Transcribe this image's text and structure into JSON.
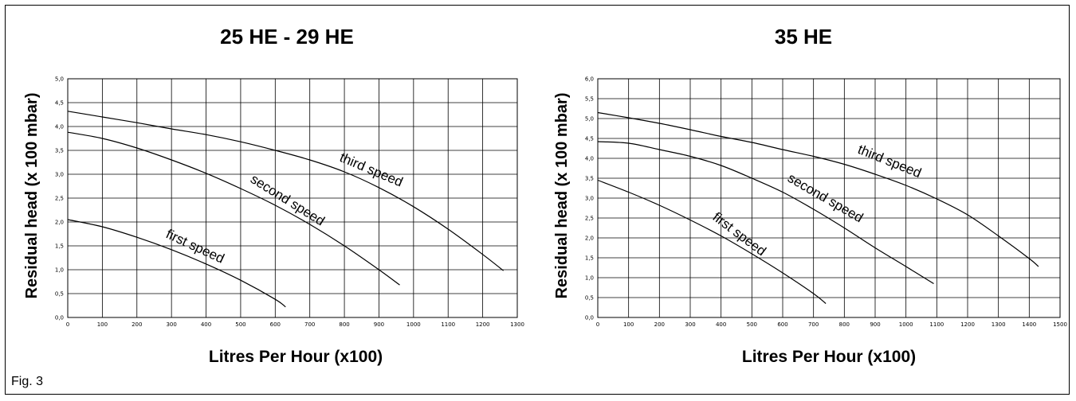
{
  "figure": {
    "caption": "Fig. 3"
  },
  "chart_data": [
    {
      "type": "line",
      "title": "25 HE - 29 HE",
      "xlabel": "Litres Per Hour (x100)",
      "ylabel": "Residual head (x 100 mbar)",
      "xlim": [
        0,
        1300
      ],
      "ylim": [
        0,
        5
      ],
      "xticks": [
        0,
        100,
        200,
        300,
        400,
        500,
        600,
        700,
        800,
        900,
        1000,
        1100,
        1200,
        1300
      ],
      "yticks": [
        0,
        0.5,
        1,
        1.5,
        2,
        2.5,
        3,
        3.5,
        4,
        4.5,
        5
      ],
      "xtick_labels": [
        "0",
        "100",
        "200",
        "300",
        "400",
        "500",
        "600",
        "700",
        "800",
        "900",
        "1000",
        "1100",
        "1200",
        "1300"
      ],
      "ytick_labels": [
        "0,0",
        "0,5",
        "1,0",
        "1,5",
        "2,0",
        "2,5",
        "3,0",
        "3,5",
        "4,0",
        "4,5",
        "5,0"
      ],
      "grid": true,
      "series": [
        {
          "name": "first speed",
          "x": [
            0,
            100,
            200,
            300,
            400,
            500,
            600,
            630
          ],
          "y": [
            2.05,
            1.9,
            1.68,
            1.42,
            1.12,
            0.78,
            0.38,
            0.22
          ]
        },
        {
          "name": "second speed",
          "x": [
            0,
            100,
            200,
            300,
            400,
            500,
            600,
            700,
            800,
            900,
            960
          ],
          "y": [
            3.88,
            3.75,
            3.55,
            3.3,
            3.02,
            2.7,
            2.35,
            1.95,
            1.5,
            1.0,
            0.68
          ]
        },
        {
          "name": "third speed",
          "x": [
            0,
            100,
            200,
            300,
            400,
            500,
            600,
            700,
            800,
            900,
            1000,
            1100,
            1200,
            1260
          ],
          "y": [
            4.32,
            4.2,
            4.08,
            3.95,
            3.83,
            3.68,
            3.5,
            3.3,
            3.05,
            2.72,
            2.32,
            1.85,
            1.32,
            0.98
          ]
        }
      ],
      "annotations": [
        "third speed",
        "second speed",
        "first speed"
      ]
    },
    {
      "type": "line",
      "title": "35 HE",
      "xlabel": "Litres Per Hour (x100)",
      "ylabel": "Residual head (x 100 mbar)",
      "xlim": [
        0,
        1500
      ],
      "ylim": [
        0,
        6
      ],
      "xticks": [
        0,
        100,
        200,
        300,
        400,
        500,
        600,
        700,
        800,
        900,
        1000,
        1100,
        1200,
        1300,
        1400,
        1500
      ],
      "yticks": [
        0,
        0.5,
        1,
        1.5,
        2,
        2.5,
        3,
        3.5,
        4,
        4.5,
        5,
        5.5,
        6
      ],
      "xtick_labels": [
        "0",
        "100",
        "200",
        "300",
        "400",
        "500",
        "600",
        "700",
        "800",
        "900",
        "1000",
        "1100",
        "1200",
        "1300",
        "1400",
        "1500"
      ],
      "ytick_labels": [
        "0,0",
        "0,5",
        "1,0",
        "1,5",
        "2,0",
        "2,5",
        "3,0",
        "3,5",
        "4,0",
        "4,5",
        "5,0",
        "5,5",
        "6,0"
      ],
      "grid": true,
      "series": [
        {
          "name": "first speed",
          "x": [
            0,
            100,
            200,
            300,
            400,
            500,
            600,
            700,
            740
          ],
          "y": [
            3.45,
            3.15,
            2.82,
            2.45,
            2.05,
            1.6,
            1.12,
            0.6,
            0.35
          ]
        },
        {
          "name": "second speed",
          "x": [
            0,
            100,
            200,
            300,
            400,
            500,
            600,
            700,
            800,
            900,
            1000,
            1090
          ],
          "y": [
            4.42,
            4.38,
            4.22,
            4.05,
            3.82,
            3.5,
            3.15,
            2.72,
            2.25,
            1.75,
            1.28,
            0.85
          ]
        },
        {
          "name": "third speed",
          "x": [
            0,
            100,
            200,
            300,
            400,
            500,
            600,
            700,
            800,
            900,
            1000,
            1100,
            1200,
            1300,
            1400,
            1430
          ],
          "y": [
            5.15,
            5.02,
            4.88,
            4.72,
            4.55,
            4.4,
            4.22,
            4.05,
            3.85,
            3.6,
            3.32,
            2.98,
            2.58,
            2.05,
            1.48,
            1.28
          ]
        }
      ],
      "annotations": [
        "third speed",
        "second speed",
        "first speed"
      ]
    }
  ]
}
